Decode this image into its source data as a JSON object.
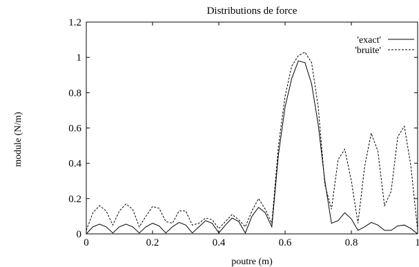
{
  "chart_data": {
    "type": "line",
    "title": "Distributions de force",
    "xlabel": "poutre (m)",
    "ylabel": "module (N/m)",
    "xlim": [
      0,
      1
    ],
    "ylim": [
      0,
      1.2
    ],
    "xticks": [
      "0",
      "0.2",
      "0.4",
      "0.6",
      "0.8",
      "1"
    ],
    "yticks": [
      "0",
      "0.2",
      "0.4",
      "0.6",
      "0.8",
      "1",
      "1.2"
    ],
    "grid": false,
    "legend_position": "top-right",
    "series": [
      {
        "name": "'exact'",
        "style": "solid",
        "color": "#000000",
        "x": [
          0,
          0.02,
          0.04,
          0.06,
          0.08,
          0.1,
          0.12,
          0.14,
          0.16,
          0.18,
          0.2,
          0.22,
          0.24,
          0.26,
          0.28,
          0.3,
          0.32,
          0.34,
          0.36,
          0.38,
          0.4,
          0.42,
          0.44,
          0.46,
          0.48,
          0.5,
          0.52,
          0.54,
          0.56,
          0.58,
          0.6,
          0.62,
          0.64,
          0.66,
          0.68,
          0.7,
          0.72,
          0.74,
          0.76,
          0.78,
          0.8,
          0.82,
          0.84,
          0.86,
          0.88,
          0.9,
          0.92,
          0.94,
          0.96,
          0.98,
          1.0
        ],
        "y": [
          0.0,
          0.04,
          0.055,
          0.04,
          0.005,
          0.04,
          0.055,
          0.04,
          0.005,
          0.04,
          0.06,
          0.045,
          0.005,
          0.04,
          0.065,
          0.05,
          0.005,
          0.04,
          0.075,
          0.06,
          0.005,
          0.05,
          0.09,
          0.07,
          0.005,
          0.1,
          0.15,
          0.12,
          0.04,
          0.45,
          0.72,
          0.88,
          0.98,
          0.97,
          0.85,
          0.62,
          0.3,
          0.06,
          0.075,
          0.12,
          0.085,
          0.02,
          0.04,
          0.065,
          0.05,
          0.02,
          0.02,
          0.045,
          0.05,
          0.03,
          0.0
        ]
      },
      {
        "name": "'bruite'",
        "style": "dashed",
        "color": "#000000",
        "x": [
          0,
          0.02,
          0.04,
          0.06,
          0.08,
          0.1,
          0.12,
          0.14,
          0.16,
          0.18,
          0.2,
          0.22,
          0.24,
          0.26,
          0.28,
          0.3,
          0.32,
          0.34,
          0.36,
          0.38,
          0.4,
          0.42,
          0.44,
          0.46,
          0.48,
          0.5,
          0.52,
          0.54,
          0.56,
          0.58,
          0.6,
          0.62,
          0.64,
          0.66,
          0.68,
          0.7,
          0.72,
          0.74,
          0.76,
          0.78,
          0.8,
          0.82,
          0.84,
          0.86,
          0.88,
          0.9,
          0.92,
          0.94,
          0.96,
          0.98,
          1.0
        ],
        "y": [
          0.02,
          0.12,
          0.16,
          0.13,
          0.05,
          0.13,
          0.17,
          0.14,
          0.04,
          0.1,
          0.155,
          0.145,
          0.07,
          0.06,
          0.13,
          0.13,
          0.05,
          0.06,
          0.09,
          0.08,
          0.03,
          0.07,
          0.11,
          0.08,
          0.04,
          0.13,
          0.2,
          0.14,
          0.06,
          0.5,
          0.78,
          0.95,
          1.01,
          1.03,
          0.97,
          0.72,
          0.28,
          0.14,
          0.42,
          0.48,
          0.3,
          0.06,
          0.38,
          0.57,
          0.47,
          0.16,
          0.24,
          0.55,
          0.61,
          0.38,
          0.02
        ]
      }
    ]
  }
}
